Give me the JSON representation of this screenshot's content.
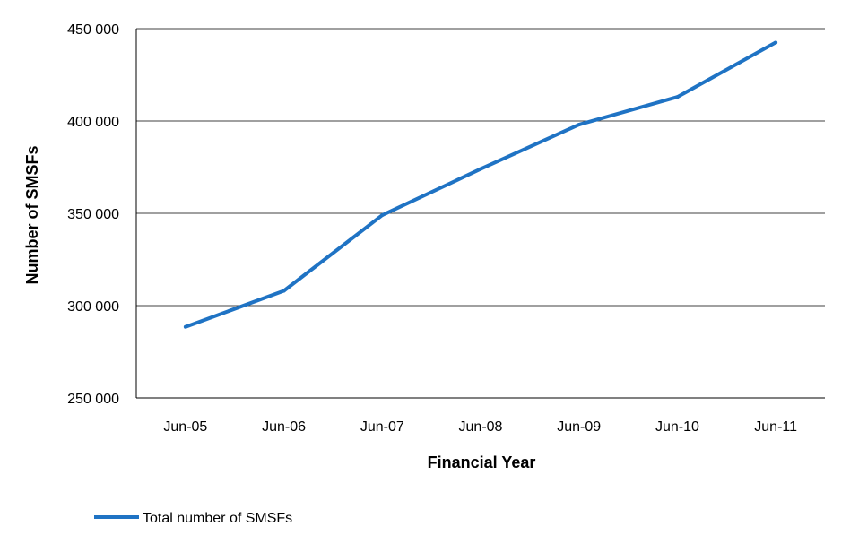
{
  "chart_data": {
    "type": "line",
    "title": "",
    "xlabel": "Financial Year",
    "ylabel": "Number of SMSFs",
    "categories": [
      "Jun-05",
      "Jun-06",
      "Jun-07",
      "Jun-08",
      "Jun-09",
      "Jun-10",
      "Jun-11"
    ],
    "series": [
      {
        "name": "Total number of SMSFs",
        "color": "#1f73c4",
        "values": [
          288500,
          308000,
          349000,
          374000,
          398000,
          413000,
          442500
        ]
      }
    ],
    "ylim": [
      250000,
      450000
    ],
    "yticks": [
      250000,
      300000,
      350000,
      400000,
      450000
    ],
    "ytick_labels": [
      "250 000",
      "300 000",
      "350 000",
      "400 000",
      "450 000"
    ],
    "grid": true,
    "legend_position": "bottom-left"
  }
}
